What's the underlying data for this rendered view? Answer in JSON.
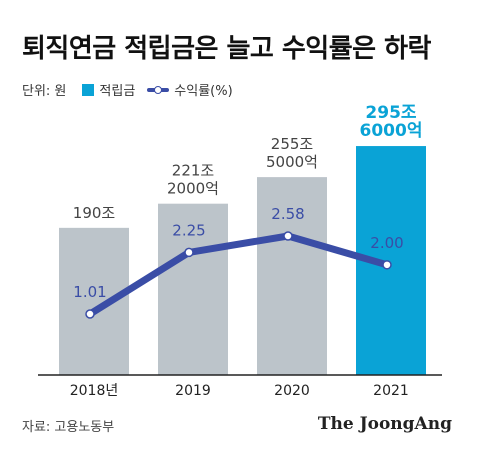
{
  "title": "퇴직연금 적립금은 늘고 수익률은 하락",
  "unit_label": "단위: 원",
  "source": "자료: 고용노동부",
  "brand": "The JoongAng",
  "colors": {
    "bar": "#bcc4ca",
    "bar_highlight": "#0aa3d6",
    "line": "#3a4da6",
    "text": "#333333"
  },
  "chart_data": {
    "type": "bar",
    "categories": [
      "2018년",
      "2019",
      "2020",
      "2021"
    ],
    "series": [
      {
        "name": "적립금",
        "unit": "조 원",
        "values": [
          190,
          221.2,
          255.5,
          295.6
        ],
        "labels": [
          [
            "190조"
          ],
          [
            "221조",
            "2000억"
          ],
          [
            "255조",
            "5000억"
          ],
          [
            "295조",
            "6000억"
          ]
        ],
        "highlight_index": 3
      },
      {
        "name": "수익률(%)",
        "type": "line",
        "values": [
          1.01,
          2.25,
          2.58,
          2.0
        ],
        "labels": [
          "1.01",
          "2.25",
          "2.58",
          "2.00"
        ]
      }
    ],
    "legend_position": "top-left",
    "grid": false
  }
}
